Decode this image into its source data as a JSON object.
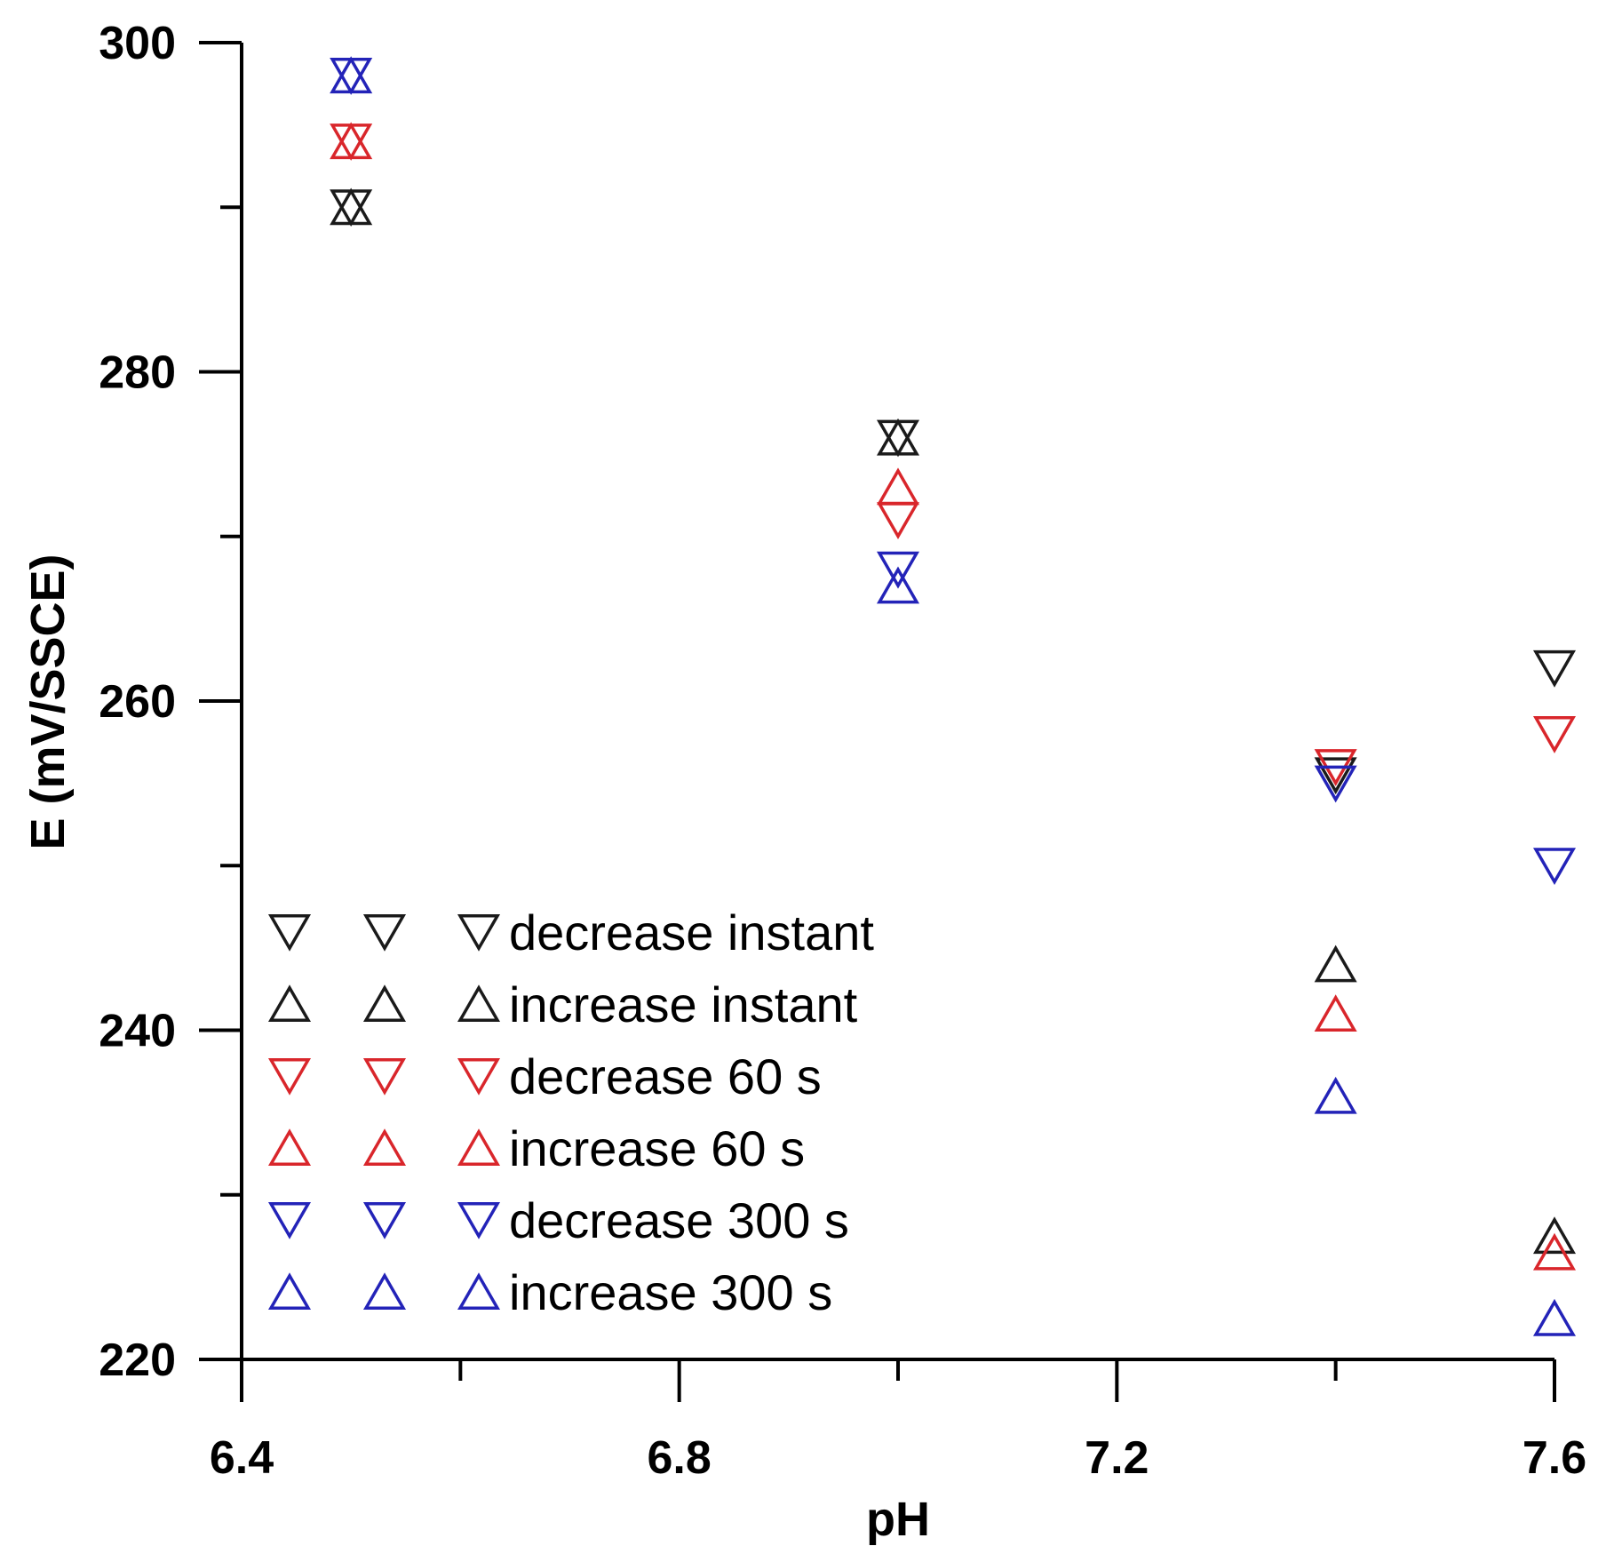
{
  "chart_data": {
    "type": "scatter",
    "title": "",
    "xlabel": "pH",
    "ylabel": "E (mV/SSCE)",
    "xlim": [
      6.4,
      7.6
    ],
    "ylim": [
      220,
      300
    ],
    "x_ticks": [
      6.4,
      6.8,
      7.2,
      7.6
    ],
    "x_tick_labels": [
      "6.4",
      "6.8",
      "7.2",
      "7.6"
    ],
    "y_ticks": [
      220,
      240,
      260,
      280,
      300
    ],
    "y_tick_labels": [
      "220",
      "240",
      "260",
      "280",
      "300"
    ],
    "legend_position": "bottom-left",
    "series": [
      {
        "name": "decrease instant",
        "marker": "triangle-down",
        "color": "#1a1a1a",
        "points": [
          [
            6.5,
            290
          ],
          [
            7.0,
            276
          ],
          [
            7.4,
            255.5
          ],
          [
            7.6,
            262
          ]
        ]
      },
      {
        "name": "increase instant",
        "marker": "triangle-up",
        "color": "#1a1a1a",
        "points": [
          [
            6.5,
            290
          ],
          [
            7.0,
            276
          ],
          [
            7.4,
            244
          ],
          [
            7.6,
            227.5
          ]
        ]
      },
      {
        "name": "decrease 60 s",
        "marker": "triangle-down",
        "color": "#d9262b",
        "points": [
          [
            6.5,
            294
          ],
          [
            7.0,
            271
          ],
          [
            7.4,
            256
          ],
          [
            7.6,
            258
          ]
        ]
      },
      {
        "name": "increase 60 s",
        "marker": "triangle-up",
        "color": "#d9262b",
        "points": [
          [
            6.5,
            294
          ],
          [
            7.0,
            273
          ],
          [
            7.4,
            241
          ],
          [
            7.6,
            226.5
          ]
        ]
      },
      {
        "name": "decrease 300 s",
        "marker": "triangle-down",
        "color": "#2323b8",
        "points": [
          [
            6.5,
            298
          ],
          [
            7.0,
            268
          ],
          [
            7.4,
            255
          ],
          [
            7.6,
            250
          ]
        ]
      },
      {
        "name": "increase 300 s",
        "marker": "triangle-up",
        "color": "#2323b8",
        "points": [
          [
            6.5,
            298
          ],
          [
            7.0,
            267
          ],
          [
            7.4,
            236
          ],
          [
            7.6,
            222.5
          ]
        ]
      }
    ]
  }
}
